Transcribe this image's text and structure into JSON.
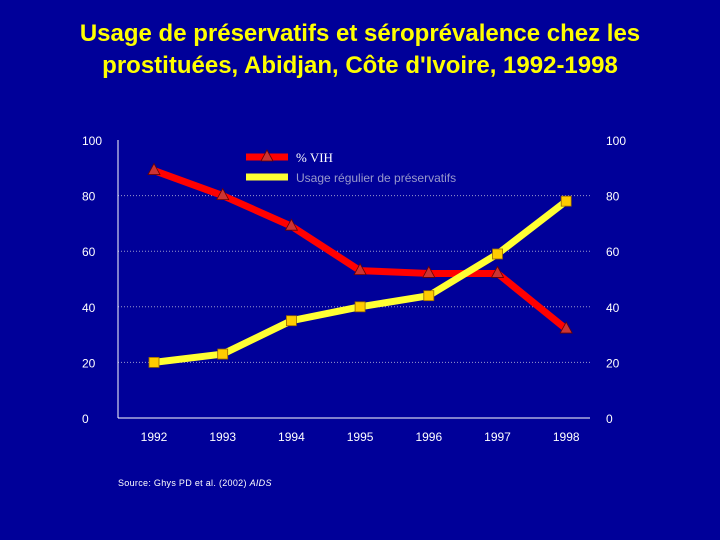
{
  "title": {
    "line1": "Usage de préservatifs et séroprévalence chez les",
    "line2": "prostituées, Abidjan, Côte d'Ivoire, 1992-1998"
  },
  "source": {
    "text": "Source: Ghys PD et al.  (2002)",
    "journal": "AIDS"
  },
  "colors": {
    "background": "#000099",
    "title": "#FFFF00",
    "text": "#FFFFFF",
    "vih_line": "#FF0000",
    "vih_marker": "#CC3333",
    "preservatif_line": "#FFFF33",
    "preservatif_marker": "#FFCC00",
    "gridline": "#9999CC"
  },
  "chart_data": {
    "type": "line",
    "title": "Usage de préservatifs et séroprévalence chez les prostituées, Abidjan, Côte d'Ivoire, 1992-1998",
    "categories": [
      "1992",
      "1993",
      "1994",
      "1995",
      "1996",
      "1997",
      "1998"
    ],
    "y_ticks_left": [
      "0",
      "20",
      "40",
      "60",
      "80",
      "100"
    ],
    "y_ticks_right": [
      "0",
      "20",
      "40",
      "60",
      "80",
      "100"
    ],
    "ylim": [
      0,
      100
    ],
    "grid": true,
    "legend_position": "top-center",
    "series": [
      {
        "name": "% VIH",
        "marker": "triangle",
        "values": [
          89,
          80,
          69,
          53,
          52,
          52,
          32
        ]
      },
      {
        "name": "Usage régulier de préservatifs",
        "marker": "square",
        "values": [
          20,
          23,
          35,
          40,
          44,
          59,
          78
        ]
      }
    ]
  }
}
